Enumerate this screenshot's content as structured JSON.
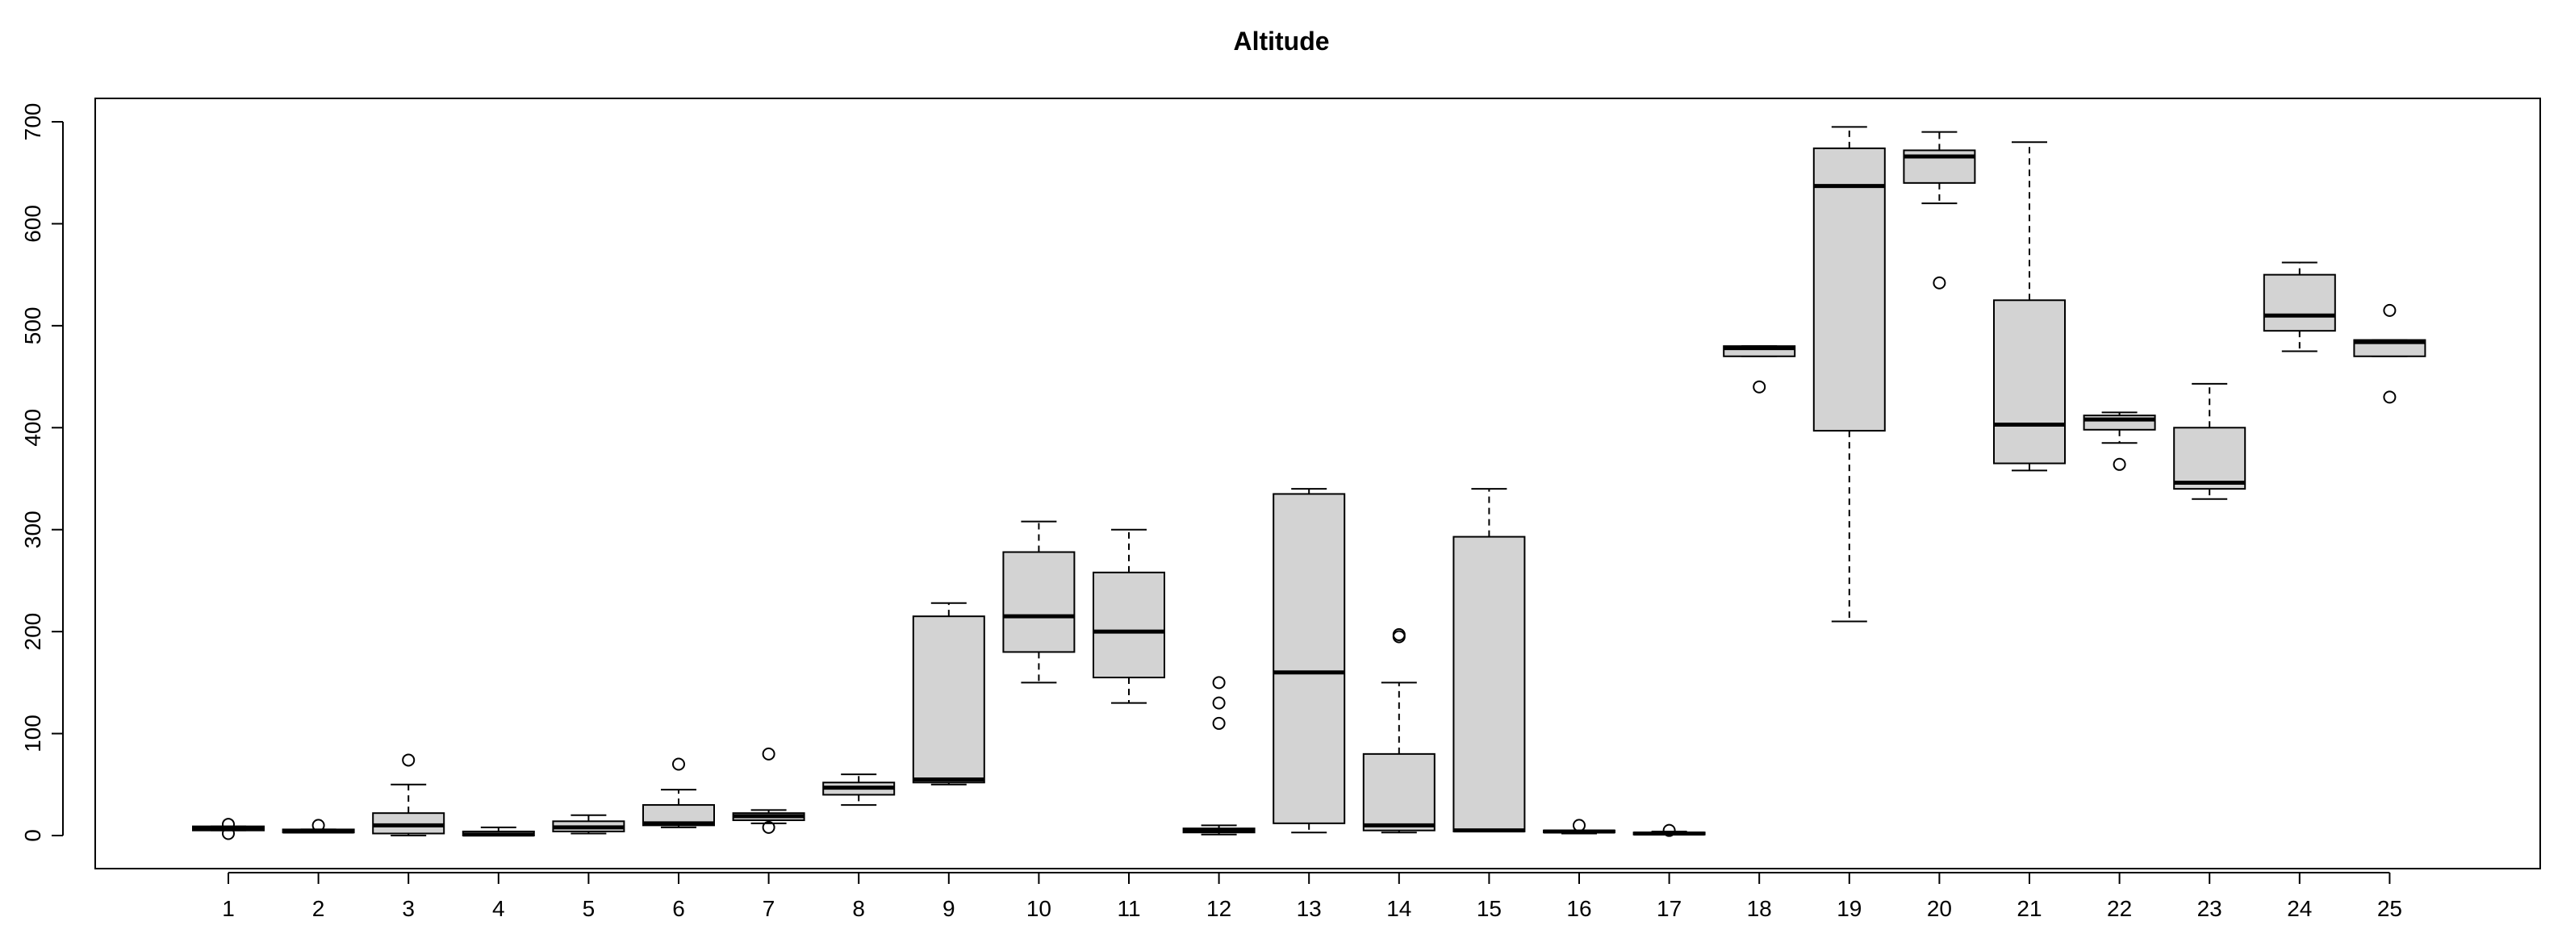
{
  "chart_data": {
    "type": "boxplot",
    "title": "Altitude",
    "xlabel": "",
    "ylabel": "",
    "ylim": [
      -25,
      720
    ],
    "yticks": [
      0,
      100,
      200,
      300,
      400,
      500,
      600,
      700
    ],
    "categories": [
      "1",
      "2",
      "3",
      "4",
      "5",
      "6",
      "7",
      "8",
      "9",
      "10",
      "11",
      "12",
      "13",
      "14",
      "15",
      "16",
      "17",
      "18",
      "19",
      "20",
      "21",
      "22",
      "23",
      "24",
      "25"
    ],
    "grid": false,
    "box_color": "#d3d3d3",
    "boxes": [
      {
        "label": "1",
        "whisker_low": 5,
        "q1": 5,
        "median": 7,
        "q3": 9,
        "whisker_high": 9,
        "outliers": [
          2,
          11
        ]
      },
      {
        "label": "2",
        "whisker_low": 3,
        "q1": 3,
        "median": 4,
        "q3": 6,
        "whisker_high": 6,
        "outliers": [
          10
        ]
      },
      {
        "label": "3",
        "whisker_low": 0,
        "q1": 2,
        "median": 10,
        "q3": 22,
        "whisker_high": 50,
        "outliers": [
          74
        ]
      },
      {
        "label": "4",
        "whisker_low": 0,
        "q1": 0,
        "median": 1,
        "q3": 4,
        "whisker_high": 8,
        "outliers": []
      },
      {
        "label": "5",
        "whisker_low": 2,
        "q1": 4,
        "median": 8,
        "q3": 14,
        "whisker_high": 20,
        "outliers": []
      },
      {
        "label": "6",
        "whisker_low": 8,
        "q1": 10,
        "median": 12,
        "q3": 30,
        "whisker_high": 45,
        "outliers": [
          70
        ]
      },
      {
        "label": "7",
        "whisker_low": 12,
        "q1": 15,
        "median": 19,
        "q3": 22,
        "whisker_high": 25,
        "outliers": [
          8,
          80
        ]
      },
      {
        "label": "8",
        "whisker_low": 30,
        "q1": 40,
        "median": 47,
        "q3": 52,
        "whisker_high": 60,
        "outliers": []
      },
      {
        "label": "9",
        "whisker_low": 50,
        "q1": 52,
        "median": 55,
        "q3": 215,
        "whisker_high": 228,
        "outliers": []
      },
      {
        "label": "10",
        "whisker_low": 150,
        "q1": 180,
        "median": 215,
        "q3": 278,
        "whisker_high": 308,
        "outliers": []
      },
      {
        "label": "11",
        "whisker_low": 130,
        "q1": 155,
        "median": 200,
        "q3": 258,
        "whisker_high": 300,
        "outliers": []
      },
      {
        "label": "12",
        "whisker_low": 1,
        "q1": 3,
        "median": 5,
        "q3": 7,
        "whisker_high": 10,
        "outliers": [
          110,
          130,
          150
        ]
      },
      {
        "label": "13",
        "whisker_low": 3,
        "q1": 12,
        "median": 160,
        "q3": 335,
        "whisker_high": 340,
        "outliers": []
      },
      {
        "label": "14",
        "whisker_low": 3,
        "q1": 5,
        "median": 10,
        "q3": 80,
        "whisker_high": 150,
        "outliers": [
          195,
          197
        ]
      },
      {
        "label": "15",
        "whisker_low": 4,
        "q1": 4,
        "median": 5,
        "q3": 293,
        "whisker_high": 340,
        "outliers": []
      },
      {
        "label": "16",
        "whisker_low": 2,
        "q1": 3,
        "median": 4,
        "q3": 5,
        "whisker_high": 5,
        "outliers": [
          10
        ]
      },
      {
        "label": "17",
        "whisker_low": 1,
        "q1": 1,
        "median": 2,
        "q3": 3,
        "whisker_high": 4,
        "outliers": [
          5
        ]
      },
      {
        "label": "18",
        "whisker_low": 470,
        "q1": 470,
        "median": 478,
        "q3": 480,
        "whisker_high": 480,
        "outliers": [
          440
        ]
      },
      {
        "label": "19",
        "whisker_low": 210,
        "q1": 397,
        "median": 637,
        "q3": 674,
        "whisker_high": 695,
        "outliers": []
      },
      {
        "label": "20",
        "whisker_low": 620,
        "q1": 640,
        "median": 666,
        "q3": 672,
        "whisker_high": 690,
        "outliers": [
          542
        ]
      },
      {
        "label": "21",
        "whisker_low": 358,
        "q1": 365,
        "median": 403,
        "q3": 525,
        "whisker_high": 680,
        "outliers": []
      },
      {
        "label": "22",
        "whisker_low": 385,
        "q1": 398,
        "median": 408,
        "q3": 412,
        "whisker_high": 415,
        "outliers": [
          364
        ]
      },
      {
        "label": "23",
        "whisker_low": 330,
        "q1": 340,
        "median": 346,
        "q3": 400,
        "whisker_high": 443,
        "outliers": []
      },
      {
        "label": "24",
        "whisker_low": 475,
        "q1": 495,
        "median": 510,
        "q3": 550,
        "whisker_high": 562,
        "outliers": []
      },
      {
        "label": "25",
        "whisker_low": 470,
        "q1": 470,
        "median": 484,
        "q3": 486,
        "whisker_high": 486,
        "outliers": [
          430,
          515
        ]
      }
    ]
  }
}
